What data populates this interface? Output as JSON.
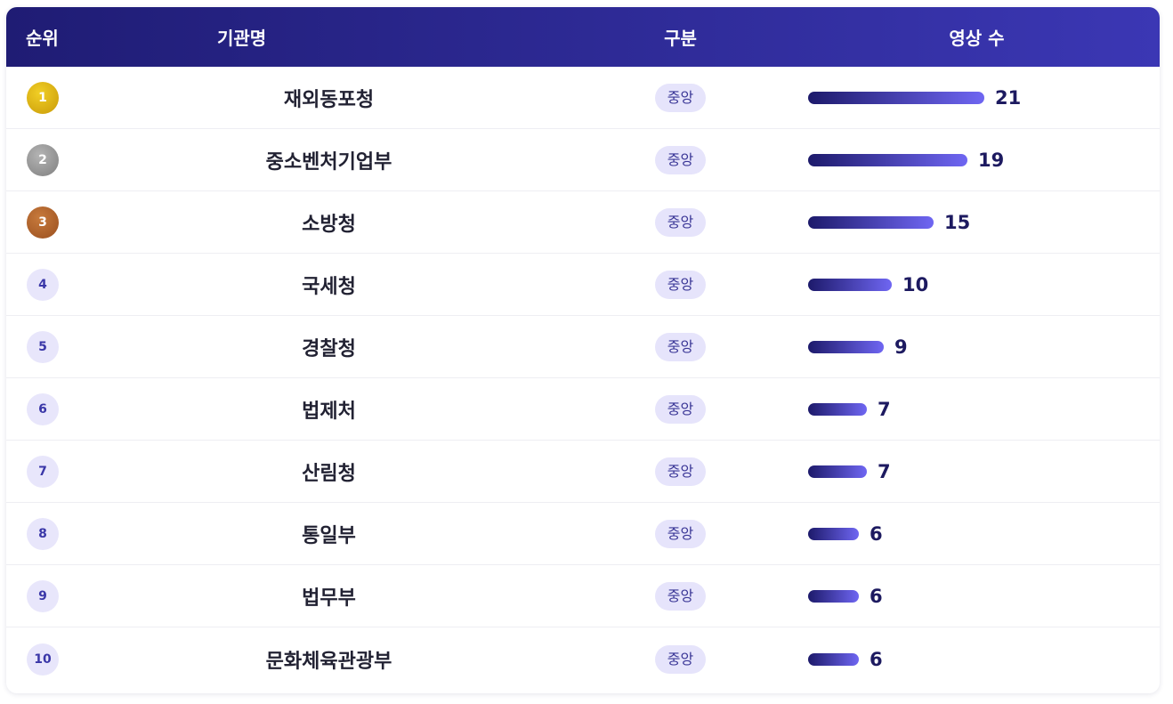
{
  "header": {
    "rank": "순위",
    "name": "기관명",
    "type": "구분",
    "count": "영상 수"
  },
  "rows": [
    {
      "rank": "1",
      "name": "재외동포청",
      "type": "중앙",
      "count": 21,
      "count_label": "21",
      "medal": "gold"
    },
    {
      "rank": "2",
      "name": "중소벤처기업부",
      "type": "중앙",
      "count": 19,
      "count_label": "19",
      "medal": "silver"
    },
    {
      "rank": "3",
      "name": "소방청",
      "type": "중앙",
      "count": 15,
      "count_label": "15",
      "medal": "bronze"
    },
    {
      "rank": "4",
      "name": "국세청",
      "type": "중앙",
      "count": 10,
      "count_label": "10",
      "medal": ""
    },
    {
      "rank": "5",
      "name": "경찰청",
      "type": "중앙",
      "count": 9,
      "count_label": "9",
      "medal": ""
    },
    {
      "rank": "6",
      "name": "법제처",
      "type": "중앙",
      "count": 7,
      "count_label": "7",
      "medal": ""
    },
    {
      "rank": "7",
      "name": "산림청",
      "type": "중앙",
      "count": 7,
      "count_label": "7",
      "medal": ""
    },
    {
      "rank": "8",
      "name": "통일부",
      "type": "중앙",
      "count": 6,
      "count_label": "6",
      "medal": ""
    },
    {
      "rank": "9",
      "name": "법무부",
      "type": "중앙",
      "count": 6,
      "count_label": "6",
      "medal": ""
    },
    {
      "rank": "10",
      "name": "문화체육관광부",
      "type": "중앙",
      "count": 6,
      "count_label": "6",
      "medal": ""
    }
  ],
  "colors": {
    "header_start": "#1f1c74",
    "header_end": "#3b37b4",
    "bar_start": "#1d1a6b",
    "bar_end": "#6f66f2",
    "gold": "#e0b414",
    "silver": "#9a9a9a",
    "bronze": "#b4622c",
    "pill_bg": "#e6e4fb"
  }
}
